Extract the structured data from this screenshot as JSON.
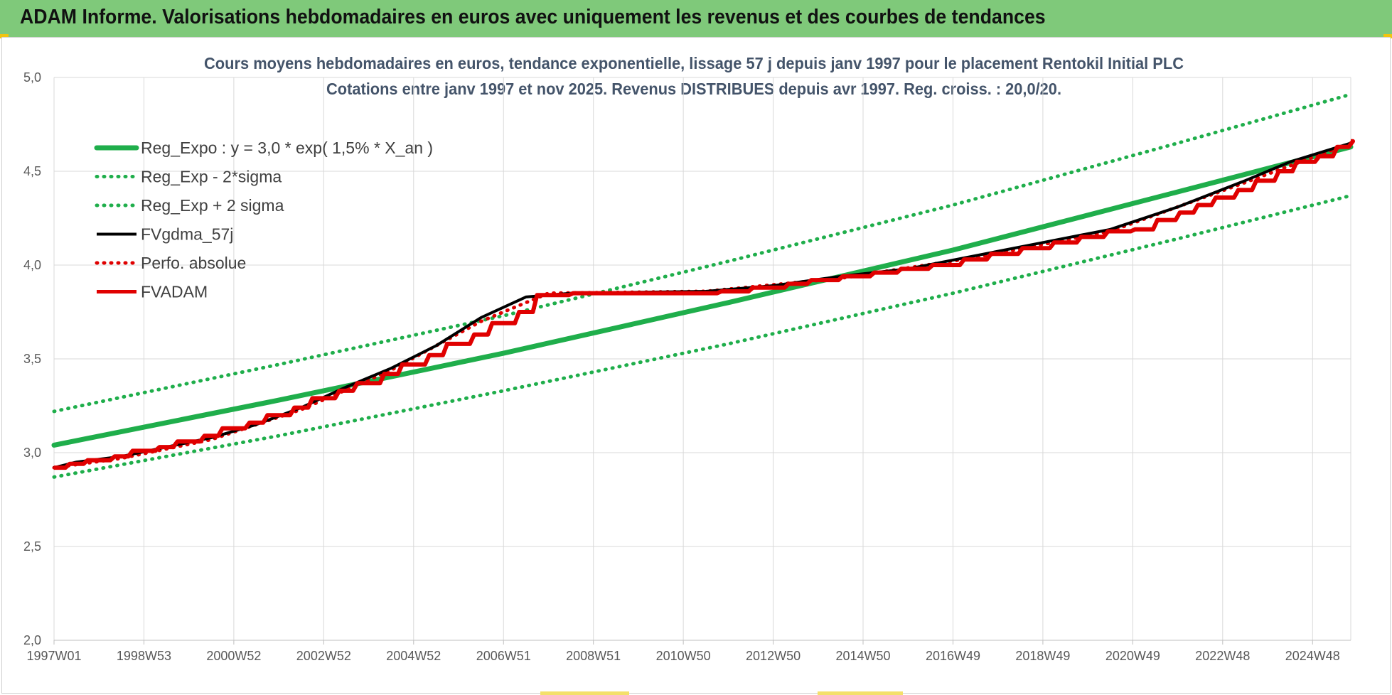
{
  "banner": {
    "title": "ADAM Informe. Valorisations hebdomadaires en euros avec uniquement les revenus et des courbes de tendances"
  },
  "colors": {
    "banner": "#7fc97a",
    "trend": "#1fae4b",
    "black": "#000000",
    "red": "#e00000",
    "grid": "#d9d9d9"
  },
  "chart_data": {
    "type": "line",
    "title_line1": "Cours moyens hebdomadaires en euros, tendance exponentielle, lissage 57 j depuis janv 1997 pour le placement Rentokil Initial PLC",
    "title_line2": "Cotations entre janv 1997 et nov 2025. Revenus DISTRIBUES depuis avr 1997. Reg. croiss. : 20,0/20.",
    "xlabel": "",
    "ylabel": "",
    "ylim": [
      2.0,
      5.0
    ],
    "yticks": [
      "2,0",
      "2,5",
      "3,0",
      "3,5",
      "4,0",
      "4,5",
      "5,0"
    ],
    "x_range_years": [
      1997.0,
      2025.85
    ],
    "xtick_labels": [
      {
        "label": "1997W01",
        "year": 1997.0
      },
      {
        "label": "1998W53",
        "year": 1999.0
      },
      {
        "label": "2000W52",
        "year": 2001.0
      },
      {
        "label": "2002W52",
        "year": 2003.0
      },
      {
        "label": "2004W52",
        "year": 2005.0
      },
      {
        "label": "2006W51",
        "year": 2007.0
      },
      {
        "label": "2008W51",
        "year": 2009.0
      },
      {
        "label": "2010W50",
        "year": 2011.0
      },
      {
        "label": "2012W50",
        "year": 2013.0
      },
      {
        "label": "2014W50",
        "year": 2015.0
      },
      {
        "label": "2016W49",
        "year": 2017.0
      },
      {
        "label": "2018W49",
        "year": 2019.0
      },
      {
        "label": "2020W49",
        "year": 2021.0
      },
      {
        "label": "2022W48",
        "year": 2023.0
      },
      {
        "label": "2024W48",
        "year": 2025.0
      }
    ],
    "grid": true,
    "legend_position": "top-left",
    "series": [
      {
        "name": "Reg_Expo : y = 3,0 * exp( 1,5% *  X_an )",
        "style": "solid",
        "color": "#1fae4b",
        "points": [
          [
            1997.0,
            3.04
          ],
          [
            2002.0,
            3.28
          ],
          [
            2007.0,
            3.53
          ],
          [
            2012.0,
            3.8
          ],
          [
            2017.0,
            4.08
          ],
          [
            2022.0,
            4.39
          ],
          [
            2025.85,
            4.63
          ]
        ]
      },
      {
        "name": "Reg_Exp - 2*sigma",
        "style": "dotted",
        "color": "#1fae4b",
        "points": [
          [
            1997.0,
            2.87
          ],
          [
            2002.0,
            3.09
          ],
          [
            2007.0,
            3.33
          ],
          [
            2012.0,
            3.58
          ],
          [
            2017.0,
            3.85
          ],
          [
            2022.0,
            4.14
          ],
          [
            2025.85,
            4.37
          ]
        ]
      },
      {
        "name": "Reg_Exp + 2 sigma",
        "style": "dotted",
        "color": "#1fae4b",
        "points": [
          [
            1997.0,
            3.22
          ],
          [
            2002.0,
            3.47
          ],
          [
            2007.0,
            3.73
          ],
          [
            2012.0,
            4.02
          ],
          [
            2017.0,
            4.32
          ],
          [
            2022.0,
            4.65
          ],
          [
            2025.85,
            4.91
          ]
        ]
      },
      {
        "name": "FVgdma_57j",
        "style": "solid",
        "color": "#000000",
        "points": [
          [
            1997.0,
            2.92
          ],
          [
            1997.5,
            2.95
          ],
          [
            1998.5,
            2.98
          ],
          [
            1999.5,
            3.03
          ],
          [
            2000.5,
            3.08
          ],
          [
            2001.5,
            3.15
          ],
          [
            2002.5,
            3.24
          ],
          [
            2003.5,
            3.35
          ],
          [
            2004.5,
            3.45
          ],
          [
            2005.5,
            3.57
          ],
          [
            2006.5,
            3.72
          ],
          [
            2007.5,
            3.83
          ],
          [
            2008.5,
            3.85
          ],
          [
            2011.5,
            3.86
          ],
          [
            2013.0,
            3.89
          ],
          [
            2014.5,
            3.94
          ],
          [
            2016.0,
            3.98
          ],
          [
            2017.5,
            4.05
          ],
          [
            2019.0,
            4.12
          ],
          [
            2020.5,
            4.19
          ],
          [
            2022.0,
            4.31
          ],
          [
            2023.5,
            4.45
          ],
          [
            2024.5,
            4.55
          ],
          [
            2025.85,
            4.65
          ]
        ]
      },
      {
        "name": "Perfo. absolue",
        "style": "dotted",
        "color": "#e00000",
        "points": [
          [
            1997.0,
            2.92
          ],
          [
            1998.5,
            2.97
          ],
          [
            2000.5,
            3.07
          ],
          [
            2002.5,
            3.23
          ],
          [
            2004.5,
            3.44
          ],
          [
            2006.5,
            3.7
          ],
          [
            2008.0,
            3.85
          ],
          [
            2011.5,
            3.86
          ],
          [
            2014.5,
            3.93
          ],
          [
            2017.5,
            4.04
          ],
          [
            2020.5,
            4.18
          ],
          [
            2023.5,
            4.44
          ],
          [
            2025.85,
            4.65
          ]
        ]
      },
      {
        "name": "FVADAM",
        "style": "step",
        "color": "#e00000",
        "points": [
          [
            1997.0,
            2.92
          ],
          [
            1997.3,
            2.94
          ],
          [
            1997.7,
            2.96
          ],
          [
            1998.3,
            2.98
          ],
          [
            1998.7,
            3.01
          ],
          [
            1999.3,
            3.03
          ],
          [
            1999.7,
            3.06
          ],
          [
            2000.3,
            3.09
          ],
          [
            2000.7,
            3.13
          ],
          [
            2001.3,
            3.16
          ],
          [
            2001.7,
            3.2
          ],
          [
            2002.3,
            3.24
          ],
          [
            2002.7,
            3.29
          ],
          [
            2003.3,
            3.33
          ],
          [
            2003.7,
            3.37
          ],
          [
            2004.3,
            3.42
          ],
          [
            2004.7,
            3.47
          ],
          [
            2005.3,
            3.52
          ],
          [
            2005.7,
            3.58
          ],
          [
            2006.3,
            3.63
          ],
          [
            2006.7,
            3.69
          ],
          [
            2007.3,
            3.75
          ],
          [
            2007.7,
            3.84
          ],
          [
            2008.5,
            3.85
          ],
          [
            2011.8,
            3.86
          ],
          [
            2012.5,
            3.88
          ],
          [
            2013.3,
            3.9
          ],
          [
            2013.8,
            3.92
          ],
          [
            2014.5,
            3.94
          ],
          [
            2015.2,
            3.96
          ],
          [
            2015.8,
            3.98
          ],
          [
            2016.5,
            4.0
          ],
          [
            2017.2,
            4.03
          ],
          [
            2017.8,
            4.06
          ],
          [
            2018.5,
            4.09
          ],
          [
            2019.2,
            4.12
          ],
          [
            2019.8,
            4.15
          ],
          [
            2020.4,
            4.18
          ],
          [
            2021.0,
            4.19
          ],
          [
            2021.5,
            4.24
          ],
          [
            2022.0,
            4.28
          ],
          [
            2022.4,
            4.32
          ],
          [
            2022.8,
            4.36
          ],
          [
            2023.3,
            4.4
          ],
          [
            2023.7,
            4.45
          ],
          [
            2024.2,
            4.5
          ],
          [
            2024.6,
            4.55
          ],
          [
            2025.1,
            4.58
          ],
          [
            2025.5,
            4.63
          ],
          [
            2025.85,
            4.66
          ]
        ]
      }
    ]
  }
}
